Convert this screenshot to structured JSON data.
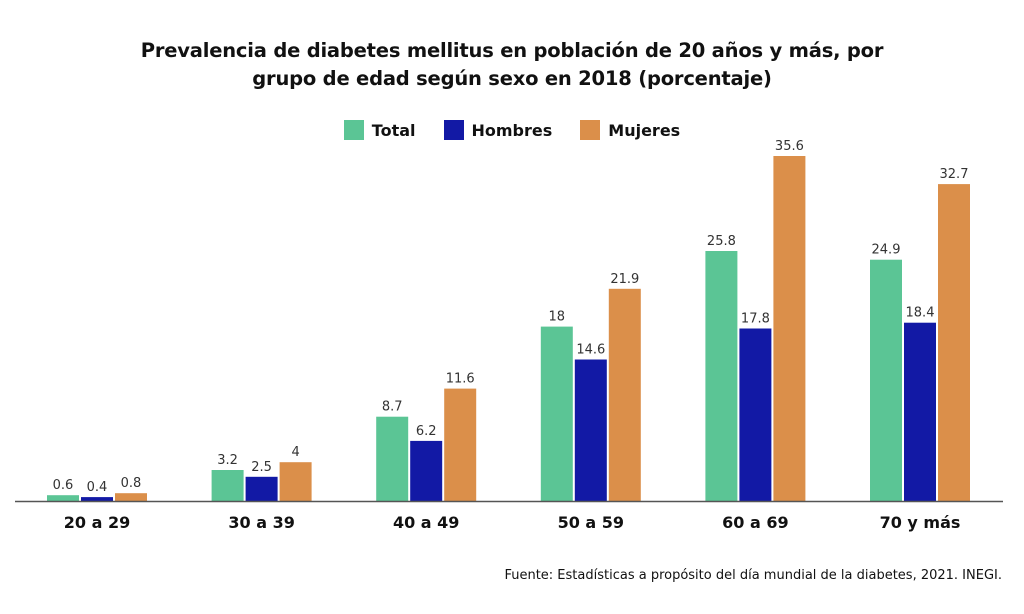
{
  "chart_data": {
    "type": "bar",
    "title": "Prevalencia de diabetes mellitus en población de 20 años y más, por grupo de edad según sexo en 2018 (porcentaje)",
    "title_lines": [
      "Prevalencia de diabetes mellitus en población de 20 años y más, por",
      "grupo de edad según sexo en 2018 (porcentaje)"
    ],
    "xlabel": "",
    "ylabel": "",
    "ylim": [
      0,
      36
    ],
    "grid": false,
    "legend_position": "top-center",
    "categories": [
      "20 a 29",
      "30 a 39",
      "40 a 49",
      "50 a 59",
      "60 a 69",
      "70 y más"
    ],
    "series": [
      {
        "name": "Total",
        "color": "#5bc595",
        "values": [
          0.6,
          3.2,
          8.7,
          18,
          25.8,
          24.9
        ]
      },
      {
        "name": "Hombres",
        "color": "#1219a5",
        "values": [
          0.4,
          2.5,
          6.2,
          14.6,
          17.8,
          18.4
        ]
      },
      {
        "name": "Mujeres",
        "color": "#db8f4a",
        "values": [
          0.8,
          4,
          11.6,
          21.9,
          35.6,
          32.7
        ]
      }
    ],
    "data_labels": true,
    "source": "Fuente: Estadísticas a propósito del día mundial de la diabetes, 2021. INEGI."
  }
}
